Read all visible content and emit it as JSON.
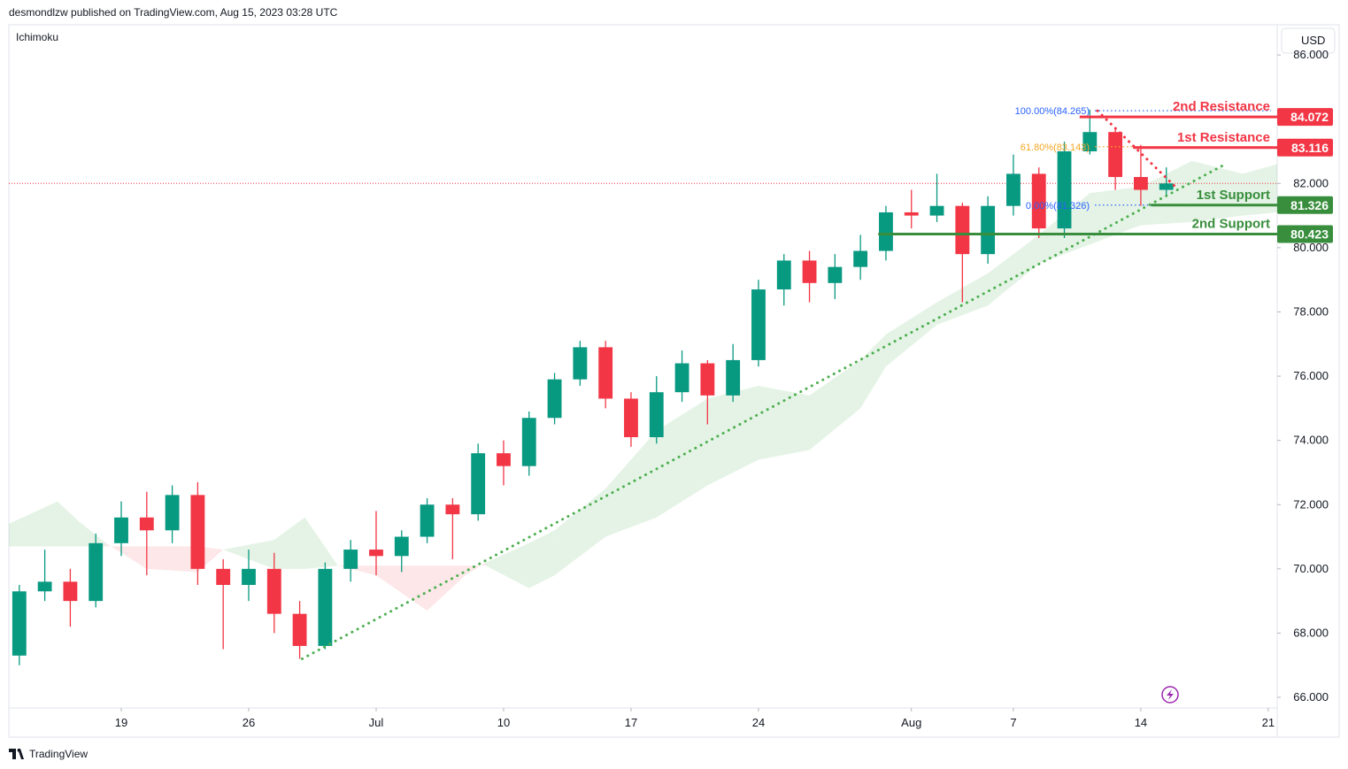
{
  "header": "desmondlzw published on TradingView.com, Aug 15, 2023 03:28 UTC",
  "indicator": "Ichimoku",
  "currency": "USD",
  "footer": "TradingView",
  "chart_data": {
    "type": "candlestick",
    "x": [
      -4,
      -3,
      -2,
      -1,
      0,
      1,
      2,
      3,
      4,
      5,
      6,
      7,
      8,
      9,
      10,
      11,
      12,
      13,
      14,
      15,
      16,
      17,
      18,
      19,
      20,
      21,
      22,
      23,
      24,
      25,
      26,
      27,
      28,
      29,
      30,
      31,
      32,
      33,
      34,
      35,
      36,
      37,
      38,
      39,
      40,
      41
    ],
    "open": [
      67.3,
      69.3,
      69.6,
      69.0,
      70.8,
      71.6,
      71.2,
      72.3,
      70.0,
      69.5,
      70.0,
      68.6,
      67.6,
      70.0,
      70.6,
      70.4,
      71.0,
      72.0,
      71.7,
      73.6,
      73.2,
      74.7,
      75.9,
      76.9,
      75.3,
      74.1,
      75.5,
      76.4,
      75.4,
      76.5,
      78.7,
      79.6,
      78.9,
      79.4,
      79.9,
      81.1,
      81.0,
      81.3,
      79.8,
      81.3,
      82.3,
      80.6,
      83.0,
      83.6,
      82.2,
      81.8
    ],
    "high": [
      69.5,
      70.6,
      70.0,
      71.1,
      72.1,
      72.4,
      72.6,
      72.7,
      70.3,
      70.6,
      70.5,
      69.0,
      70.2,
      70.9,
      71.8,
      71.2,
      72.2,
      72.2,
      73.9,
      74.0,
      74.9,
      76.1,
      77.1,
      77.1,
      75.5,
      76.0,
      76.8,
      76.5,
      77.0,
      79.0,
      79.8,
      79.9,
      79.8,
      80.4,
      81.3,
      81.8,
      82.3,
      81.4,
      81.6,
      82.9,
      82.5,
      83.3,
      84.3,
      83.7,
      83.2,
      82.5
    ],
    "low": [
      67.0,
      69.0,
      68.2,
      68.8,
      70.4,
      69.8,
      70.8,
      69.5,
      67.5,
      69.0,
      68.0,
      67.2,
      67.5,
      69.6,
      69.8,
      69.9,
      70.8,
      70.3,
      71.5,
      72.6,
      72.9,
      74.5,
      75.7,
      75.0,
      73.8,
      73.9,
      75.2,
      74.5,
      75.2,
      76.3,
      78.2,
      78.3,
      78.4,
      79.0,
      79.6,
      80.6,
      80.8,
      78.3,
      79.5,
      81.0,
      80.3,
      80.3,
      82.9,
      81.8,
      81.3,
      81.6
    ],
    "close": [
      69.3,
      69.6,
      69.0,
      70.8,
      71.6,
      71.2,
      72.3,
      70.0,
      69.5,
      70.0,
      68.6,
      67.6,
      70.0,
      70.6,
      70.4,
      71.0,
      72.0,
      71.7,
      73.6,
      73.2,
      74.7,
      75.9,
      76.9,
      75.3,
      74.1,
      75.5,
      76.4,
      75.4,
      76.5,
      78.7,
      79.6,
      78.9,
      79.4,
      79.9,
      81.1,
      81.0,
      81.3,
      79.8,
      81.3,
      82.3,
      80.6,
      83.0,
      83.6,
      82.2,
      81.8,
      82.0
    ],
    "up_color": "#089981",
    "down_color": "#f23645",
    "xlim": [
      -4.41,
      45.35
    ],
    "xticks": [
      {
        "value": 0,
        "label": "19"
      },
      {
        "value": 5,
        "label": "26"
      },
      {
        "value": 10,
        "label": "Jul"
      },
      {
        "value": 15,
        "label": "10"
      },
      {
        "value": 20,
        "label": "17"
      },
      {
        "value": 25,
        "label": "24"
      },
      {
        "value": 31,
        "label": "Aug"
      },
      {
        "value": 35,
        "label": "7"
      },
      {
        "value": 40,
        "label": "14"
      },
      {
        "value": 45,
        "label": "21"
      }
    ],
    "ylim": [
      65.67,
      86.94
    ],
    "yticks": [
      {
        "value": 66,
        "label": "66.000"
      },
      {
        "value": 68,
        "label": "68.000"
      },
      {
        "value": 70,
        "label": "70.000"
      },
      {
        "value": 72,
        "label": "72.000"
      },
      {
        "value": 74,
        "label": "74.000"
      },
      {
        "value": 76,
        "label": "76.000"
      },
      {
        "value": 78,
        "label": "78.000"
      },
      {
        "value": 80,
        "label": "80.000"
      },
      {
        "value": 82,
        "label": "82.000"
      },
      {
        "value": 84,
        "label": "84.000"
      },
      {
        "value": 86,
        "label": "86.000"
      }
    ],
    "cloud": {
      "up_color": "#4caf50",
      "down_color": "#f23645",
      "x": [
        -4.41,
        -2.5,
        -1.7,
        -0.6,
        1,
        3,
        4,
        6,
        7.2,
        8.5,
        10,
        12,
        13.5,
        14.3,
        16,
        17,
        19,
        21,
        23,
        25,
        27,
        29,
        30,
        32,
        34,
        36,
        38,
        40,
        42,
        44,
        45.35
      ],
      "span_a": [
        71.4,
        72.1,
        71.5,
        70.8,
        70.0,
        69.9,
        70.6,
        70.9,
        71.6,
        70.1,
        69.8,
        68.7,
        69.8,
        70.2,
        70.8,
        71.2,
        72.5,
        74.3,
        75.3,
        75.7,
        75.4,
        76.5,
        77.3,
        78.3,
        79.2,
        80.4,
        81.7,
        81.9,
        82.7,
        82.3,
        82.6
      ],
      "span_b": [
        70.7,
        70.7,
        70.7,
        70.7,
        70.7,
        70.7,
        70.6,
        70.0,
        70.0,
        70.1,
        70.1,
        70.1,
        70.1,
        70.1,
        69.4,
        69.8,
        71.0,
        71.6,
        72.6,
        73.4,
        73.7,
        75.0,
        76.3,
        77.6,
        78.2,
        79.5,
        80.1,
        80.7,
        80.8,
        81.0,
        81.1
      ]
    },
    "levels": [
      {
        "name": "2nd Resistance",
        "value": 84.072,
        "start": 37.6,
        "color": "#f23645"
      },
      {
        "name": "1st Resistance",
        "value": 83.116,
        "start": 39.7,
        "color": "#f23645"
      },
      {
        "name": "1st Support",
        "value": 81.326,
        "start": 40.4,
        "color": "#388e3c"
      },
      {
        "name": "2nd Support",
        "value": 80.423,
        "start": 29.7,
        "color": "#388e3c"
      }
    ],
    "fib": [
      {
        "label": "100.00%(84.265)",
        "value": 84.265,
        "x": [
          38.2,
          45.1
        ],
        "color": "#2962ff"
      },
      {
        "label": "61.80%(83.143)",
        "value": 83.143,
        "x": [
          38.2,
          45.1
        ],
        "color": "#f5a623"
      },
      {
        "label": "0.00%(81.326)",
        "value": 81.326,
        "x": [
          38.2,
          40.4
        ],
        "color": "#2962ff"
      }
    ],
    "trendlines": [
      {
        "x": [
          7.1,
          43.2
        ],
        "y": [
          67.2,
          82.55
        ],
        "color": "#4caf50"
      },
      {
        "x": [
          38.3,
          41.4
        ],
        "y": [
          84.26,
          81.86
        ],
        "color": "#f23645"
      }
    ]
  }
}
